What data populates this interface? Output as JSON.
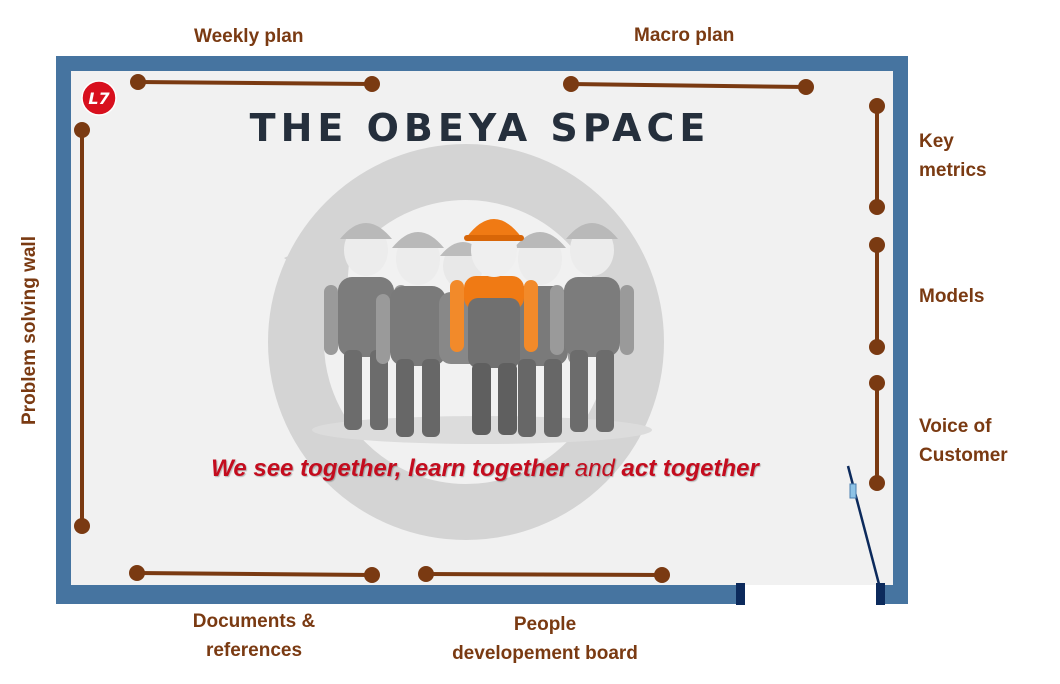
{
  "title": "THE OBEYA SPACE",
  "tagline": {
    "part1": "We see ",
    "part2": "together, learn together",
    "part3": " and ",
    "part4": "act together"
  },
  "labels": {
    "weekly_plan": "Weekly plan",
    "macro_plan": "Macro plan",
    "key_metrics_1": "Key",
    "key_metrics_2": "metrics",
    "models": "Models",
    "voice_1": "Voice of",
    "voice_2": "Customer",
    "problem_solving": "Problem solving wall",
    "documents_1": "Documents &",
    "documents_2": "references",
    "people_1": "People",
    "people_2": "developement board"
  },
  "logo_text": "L7",
  "colors": {
    "wall": "#4674a0",
    "floor": "#f1f1f1",
    "board": "#7a3a12",
    "label": "#7a3a12",
    "title": "#252f3c",
    "tagline_red": "#c40c1e",
    "helmet": "#f07a14"
  }
}
